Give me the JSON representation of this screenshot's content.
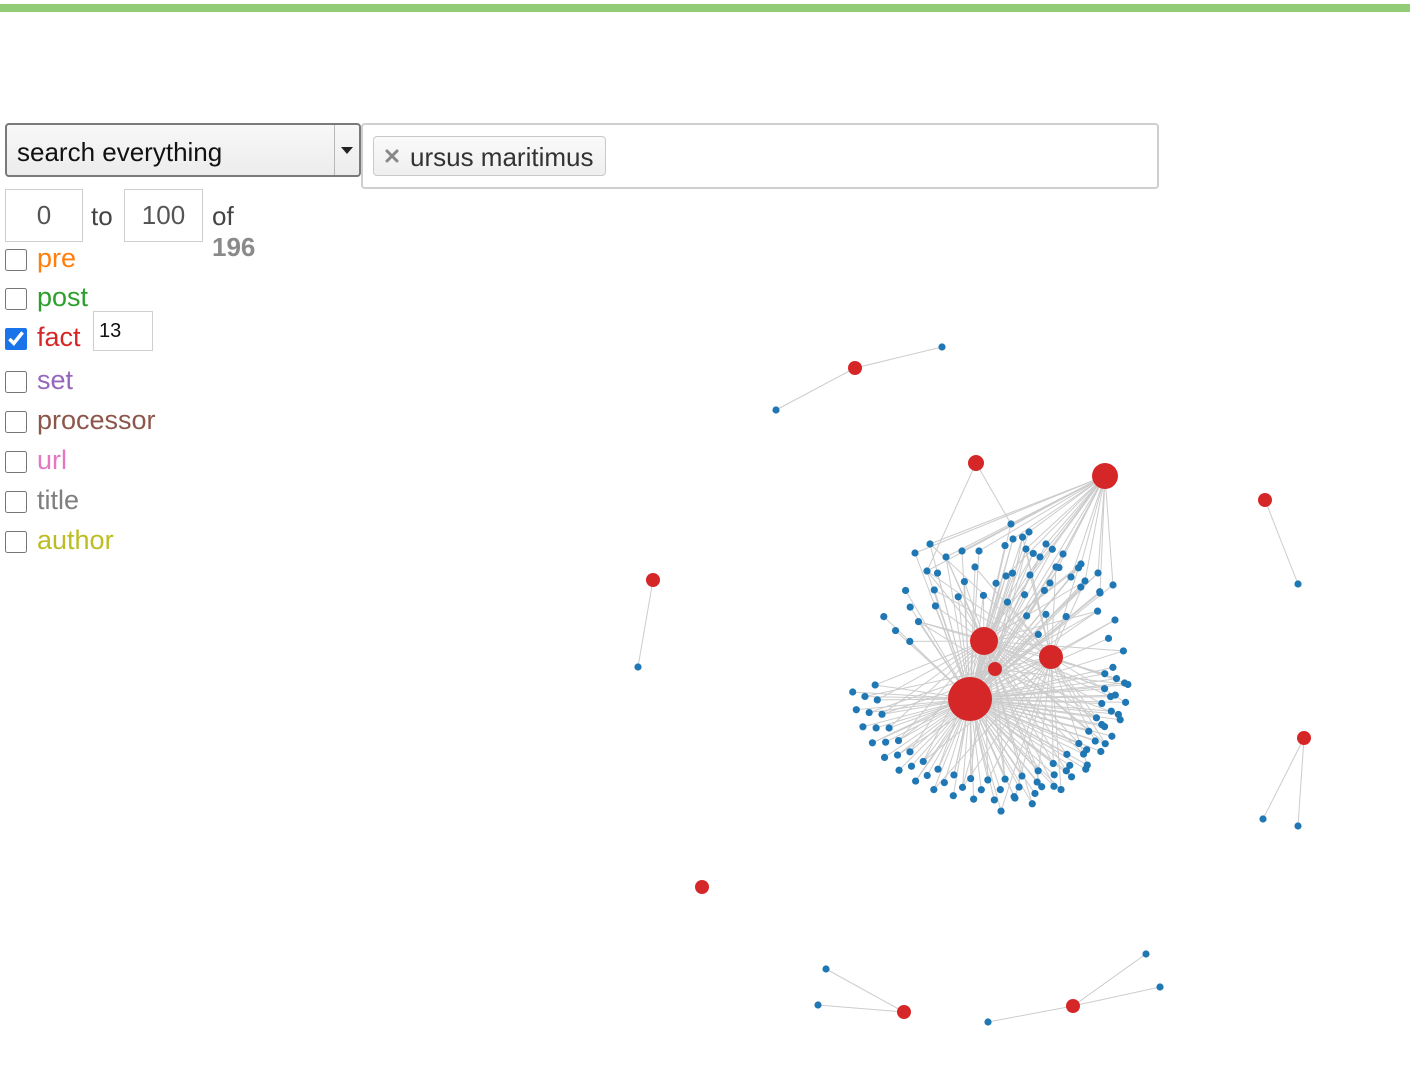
{
  "colors": {
    "top_bar": "#92cd76",
    "node_fact": "#d62728",
    "node_other": "#1f77b4",
    "link": "#cccccc"
  },
  "search": {
    "mode_selected": "search everything",
    "caret_icon": "triangle-down-icon",
    "tags": [
      {
        "label": "ursus maritimus",
        "remove_icon": "x-icon"
      }
    ]
  },
  "range": {
    "from": "0",
    "to_label": "to",
    "to": "100",
    "of_label": "of",
    "total": "196"
  },
  "filters": [
    {
      "key": "pre",
      "label": "pre",
      "color": "#ff7f0e",
      "checked": false
    },
    {
      "key": "post",
      "label": "post",
      "color": "#2ca02c",
      "checked": false
    },
    {
      "key": "fact",
      "label": "fact",
      "color": "#d62728",
      "checked": true,
      "count": "13"
    },
    {
      "key": "set",
      "label": "set",
      "color": "#9467bd",
      "checked": false
    },
    {
      "key": "processor",
      "label": "processor",
      "color": "#8c564b",
      "checked": false
    },
    {
      "key": "url",
      "label": "url",
      "color": "#e377c2",
      "checked": false
    },
    {
      "key": "title",
      "label": "title",
      "color": "#7f7f7f",
      "checked": false
    },
    {
      "key": "author",
      "label": "author",
      "color": "#bcbd22",
      "checked": false
    }
  ]
}
